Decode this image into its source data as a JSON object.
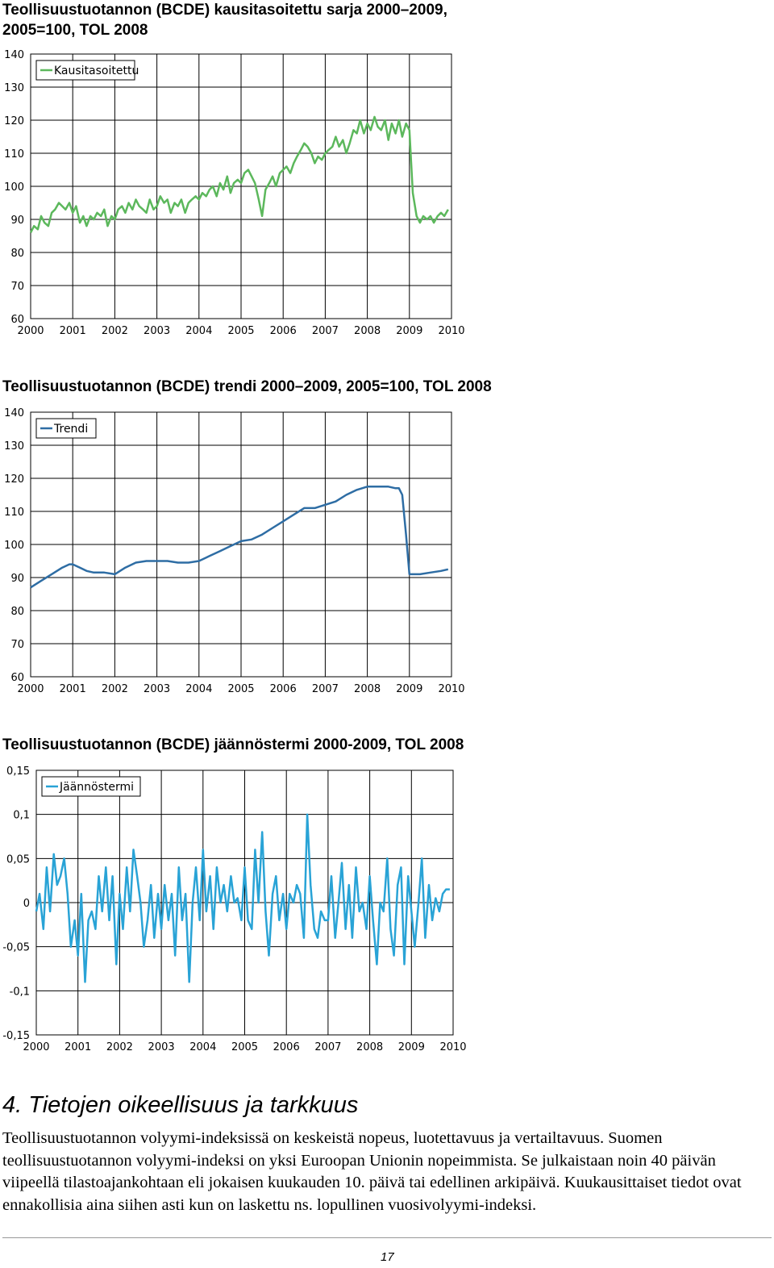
{
  "charts": [
    {
      "title": "Teollisuustuotannon (BCDE) kausitasoitettu sarja 2000–2009, 2005=100, TOL 2008",
      "yticks": [
        "140",
        "130",
        "120",
        "110",
        "100",
        "90",
        "80",
        "70",
        "60"
      ],
      "xticks": [
        "2000",
        "2001",
        "2002",
        "2003",
        "2004",
        "2005",
        "2006",
        "2007",
        "2008",
        "2009",
        "2010"
      ],
      "legend": "Kausitasoitettu",
      "color": "#5cb85c"
    },
    {
      "title": "Teollisuustuotannon (BCDE) trendi 2000–2009, 2005=100, TOL 2008",
      "yticks": [
        "140",
        "130",
        "120",
        "110",
        "100",
        "90",
        "80",
        "70",
        "60"
      ],
      "xticks": [
        "2000",
        "2001",
        "2002",
        "2003",
        "2004",
        "2005",
        "2006",
        "2007",
        "2008",
        "2009",
        "2010"
      ],
      "legend": "Trendi",
      "color": "#2e6da4"
    },
    {
      "title": "Teollisuustuotannon (BCDE) jäännöstermi 2000-2009, TOL 2008",
      "yticks": [
        "0,15",
        "0,1",
        "0,05",
        "0",
        "-0,05",
        "-0,1",
        "-0,15"
      ],
      "xticks": [
        "2000",
        "2001",
        "2002",
        "2003",
        "2004",
        "2005",
        "2006",
        "2007",
        "2008",
        "2009",
        "2010"
      ],
      "legend": "Jäännöstermi",
      "color": "#29a3d6"
    }
  ],
  "chart_data": [
    {
      "type": "line",
      "title": "Teollisuustuotannon (BCDE) kausitasoitettu sarja 2000–2009, 2005=100, TOL 2008",
      "xlabel": "",
      "ylabel": "",
      "xlim": [
        2000,
        2010
      ],
      "ylim": [
        60,
        140
      ],
      "grid": true,
      "legend_position": "top-left",
      "series": [
        {
          "name": "Kausitasoitettu",
          "color": "#5cb85c",
          "x": [
            2000.0,
            2000.08,
            2000.17,
            2000.25,
            2000.33,
            2000.42,
            2000.5,
            2000.58,
            2000.67,
            2000.75,
            2000.83,
            2000.92,
            2001.0,
            2001.08,
            2001.17,
            2001.25,
            2001.33,
            2001.42,
            2001.5,
            2001.58,
            2001.67,
            2001.75,
            2001.83,
            2001.92,
            2002.0,
            2002.08,
            2002.17,
            2002.25,
            2002.33,
            2002.42,
            2002.5,
            2002.58,
            2002.67,
            2002.75,
            2002.83,
            2002.92,
            2003.0,
            2003.08,
            2003.17,
            2003.25,
            2003.33,
            2003.42,
            2003.5,
            2003.58,
            2003.67,
            2003.75,
            2003.83,
            2003.92,
            2004.0,
            2004.08,
            2004.17,
            2004.25,
            2004.33,
            2004.42,
            2004.5,
            2004.58,
            2004.67,
            2004.75,
            2004.83,
            2004.92,
            2005.0,
            2005.08,
            2005.17,
            2005.25,
            2005.33,
            2005.42,
            2005.5,
            2005.58,
            2005.67,
            2005.75,
            2005.83,
            2005.92,
            2006.0,
            2006.08,
            2006.17,
            2006.25,
            2006.33,
            2006.42,
            2006.5,
            2006.58,
            2006.67,
            2006.75,
            2006.83,
            2006.92,
            2007.0,
            2007.08,
            2007.17,
            2007.25,
            2007.33,
            2007.42,
            2007.5,
            2007.58,
            2007.67,
            2007.75,
            2007.83,
            2007.92,
            2008.0,
            2008.08,
            2008.17,
            2008.25,
            2008.33,
            2008.42,
            2008.5,
            2008.58,
            2008.67,
            2008.75,
            2008.83,
            2008.92,
            2009.0,
            2009.08,
            2009.17,
            2009.25,
            2009.33,
            2009.42,
            2009.5,
            2009.58,
            2009.67,
            2009.75,
            2009.83,
            2009.92
          ],
          "y": [
            86,
            88,
            87,
            91,
            89,
            88,
            92,
            93,
            95,
            94,
            93,
            95,
            92,
            94,
            89,
            91,
            88,
            91,
            90,
            92,
            91,
            93,
            88,
            91,
            90,
            93,
            94,
            92,
            95,
            93,
            96,
            94,
            93,
            92,
            96,
            93,
            94,
            97,
            95,
            96,
            92,
            95,
            94,
            96,
            92,
            95,
            96,
            97,
            96,
            98,
            97,
            99,
            100,
            97,
            101,
            99,
            103,
            98,
            101,
            102,
            101,
            104,
            105,
            103,
            101,
            96,
            91,
            99,
            101,
            103,
            100,
            104,
            105,
            106,
            104,
            107,
            109,
            111,
            113,
            112,
            110,
            107,
            109,
            108,
            110,
            111,
            112,
            115,
            112,
            114,
            110,
            113,
            117,
            116,
            120,
            116,
            119,
            117,
            121,
            118,
            117,
            120,
            114,
            119,
            116,
            120,
            115,
            119,
            117,
            98,
            91,
            89,
            91,
            90,
            91,
            89,
            91,
            92,
            91,
            93
          ]
        }
      ]
    },
    {
      "type": "line",
      "title": "Teollisuustuotannon (BCDE) trendi 2000–2009, 2005=100, TOL 2008",
      "xlabel": "",
      "ylabel": "",
      "xlim": [
        2000,
        2010
      ],
      "ylim": [
        60,
        140
      ],
      "grid": true,
      "legend_position": "top-left",
      "series": [
        {
          "name": "Trendi",
          "color": "#2e6da4",
          "x": [
            2000.0,
            2000.25,
            2000.5,
            2000.75,
            2000.92,
            2001.0,
            2001.17,
            2001.33,
            2001.5,
            2001.75,
            2002.0,
            2002.25,
            2002.5,
            2002.75,
            2003.0,
            2003.25,
            2003.5,
            2003.75,
            2004.0,
            2004.25,
            2004.5,
            2004.75,
            2005.0,
            2005.25,
            2005.5,
            2005.75,
            2006.0,
            2006.25,
            2006.5,
            2006.75,
            2007.0,
            2007.25,
            2007.5,
            2007.75,
            2008.0,
            2008.25,
            2008.5,
            2008.67,
            2008.75,
            2008.83,
            2008.92,
            2009.0,
            2009.25,
            2009.5,
            2009.75,
            2009.92
          ],
          "y": [
            87,
            89,
            91,
            93,
            94,
            94,
            93,
            92,
            91.5,
            91.5,
            91,
            93,
            94.5,
            95,
            95,
            95,
            94.5,
            94.5,
            95,
            96.5,
            98,
            99.5,
            101,
            101.5,
            103,
            105,
            107,
            109,
            111,
            111,
            112,
            113,
            115,
            116.5,
            117.5,
            117.5,
            117.5,
            117,
            117,
            115,
            103,
            91,
            91,
            91.5,
            92,
            92.5
          ]
        }
      ]
    },
    {
      "type": "line",
      "title": "Teollisuustuotannon (BCDE) jäännöstermi 2000-2009, TOL 2008",
      "xlabel": "",
      "ylabel": "",
      "xlim": [
        2000,
        2010
      ],
      "ylim": [
        -0.15,
        0.15
      ],
      "grid": true,
      "legend_position": "top-left",
      "series": [
        {
          "name": "Jäännöstermi",
          "color": "#29a3d6",
          "x": [
            2000.0,
            2000.08,
            2000.17,
            2000.25,
            2000.33,
            2000.42,
            2000.5,
            2000.58,
            2000.67,
            2000.75,
            2000.83,
            2000.92,
            2001.0,
            2001.08,
            2001.17,
            2001.25,
            2001.33,
            2001.42,
            2001.5,
            2001.58,
            2001.67,
            2001.75,
            2001.83,
            2001.92,
            2002.0,
            2002.08,
            2002.17,
            2002.25,
            2002.33,
            2002.42,
            2002.5,
            2002.58,
            2002.67,
            2002.75,
            2002.83,
            2002.92,
            2003.0,
            2003.08,
            2003.17,
            2003.25,
            2003.33,
            2003.42,
            2003.5,
            2003.58,
            2003.67,
            2003.75,
            2003.83,
            2003.92,
            2004.0,
            2004.08,
            2004.17,
            2004.25,
            2004.33,
            2004.42,
            2004.5,
            2004.58,
            2004.67,
            2004.75,
            2004.83,
            2004.92,
            2005.0,
            2005.08,
            2005.17,
            2005.25,
            2005.33,
            2005.42,
            2005.5,
            2005.58,
            2005.67,
            2005.75,
            2005.83,
            2005.92,
            2006.0,
            2006.08,
            2006.17,
            2006.25,
            2006.33,
            2006.42,
            2006.5,
            2006.58,
            2006.67,
            2006.75,
            2006.83,
            2006.92,
            2007.0,
            2007.08,
            2007.17,
            2007.25,
            2007.33,
            2007.42,
            2007.5,
            2007.58,
            2007.67,
            2007.75,
            2007.83,
            2007.92,
            2008.0,
            2008.08,
            2008.17,
            2008.25,
            2008.33,
            2008.42,
            2008.5,
            2008.58,
            2008.67,
            2008.75,
            2008.83,
            2008.92,
            2009.0,
            2009.08,
            2009.17,
            2009.25,
            2009.33,
            2009.42,
            2009.5,
            2009.58,
            2009.67,
            2009.75,
            2009.83,
            2009.92
          ],
          "y": [
            -0.01,
            0.01,
            -0.03,
            0.04,
            -0.01,
            0.055,
            0.02,
            0.03,
            0.05,
            0.01,
            -0.05,
            -0.02,
            -0.06,
            0.01,
            -0.09,
            -0.02,
            -0.01,
            -0.03,
            0.03,
            -0.01,
            0.04,
            -0.02,
            0.03,
            -0.07,
            0.01,
            -0.03,
            0.04,
            -0.01,
            0.06,
            0.03,
            0.0,
            -0.05,
            -0.02,
            0.02,
            -0.04,
            0.01,
            -0.03,
            0.02,
            -0.02,
            0.01,
            -0.06,
            0.04,
            -0.02,
            0.01,
            -0.09,
            0.0,
            0.04,
            -0.02,
            0.06,
            -0.01,
            0.03,
            -0.03,
            0.04,
            0.0,
            0.02,
            -0.01,
            0.03,
            0.0,
            0.005,
            -0.02,
            0.04,
            -0.02,
            -0.03,
            0.06,
            0.0,
            0.08,
            -0.01,
            -0.06,
            0.01,
            0.03,
            -0.02,
            0.01,
            -0.03,
            0.01,
            0.0,
            0.02,
            0.01,
            -0.04,
            0.1,
            0.02,
            -0.03,
            -0.04,
            -0.01,
            -0.02,
            -0.02,
            0.03,
            -0.04,
            0.0,
            0.045,
            -0.03,
            0.02,
            -0.04,
            0.04,
            -0.01,
            0.0,
            -0.03,
            0.03,
            -0.02,
            -0.07,
            0.0,
            -0.01,
            0.05,
            -0.03,
            -0.06,
            0.02,
            0.04,
            -0.07,
            0.03,
            -0.01,
            -0.05,
            0.0,
            0.05,
            -0.04,
            0.02,
            -0.02,
            0.005,
            -0.01,
            0.01,
            0.015,
            0.015
          ]
        }
      ]
    }
  ],
  "section": {
    "heading": "4. Tietojen oikeellisuus ja tarkkuus",
    "body": "Teollisuustuotannon volyymi-indeksissä on keskeistä nopeus, luotettavuus ja vertailtavuus. Suomen teollisuustuotannon volyymi-indeksi on yksi Euroopan Unionin nopeimmista. Se julkaistaan noin 40 päivän viipeellä tilastoajankohtaan eli jokaisen kuukauden 10. päivä tai edellinen arkipäivä. Kuukausittaiset tiedot ovat ennakollisia aina siihen asti kun on laskettu ns. lopullinen vuosivolyymi-indeksi."
  },
  "footer": {
    "page_number": "17"
  }
}
